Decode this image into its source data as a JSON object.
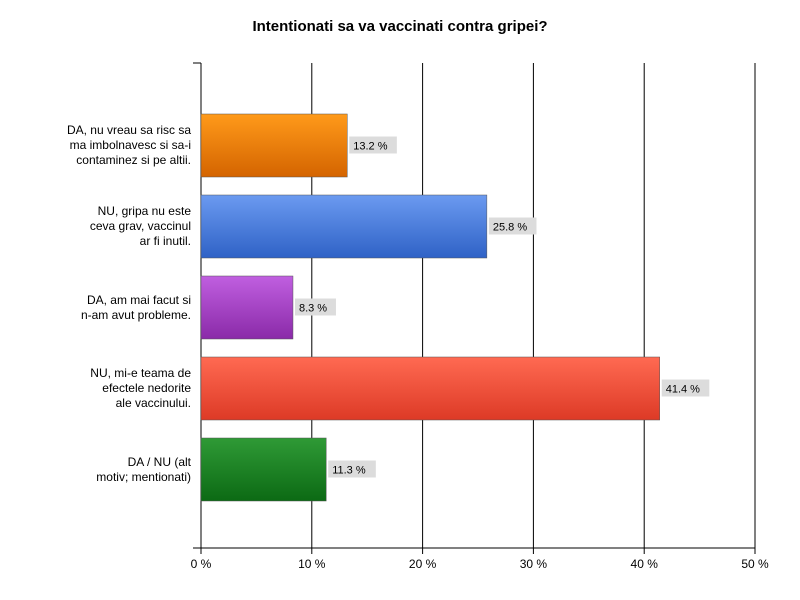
{
  "chart_data": {
    "type": "bar",
    "orientation": "horizontal",
    "title": "Intentionati sa va vaccinati contra gripei?",
    "xlabel": "",
    "ylabel": "",
    "xlim": [
      0,
      50
    ],
    "xticks": [
      0,
      10,
      20,
      30,
      40,
      50
    ],
    "tick_suffix": " %",
    "grid": true,
    "legend": "none",
    "categories": [
      "DA, nu vreau sa risc sa ma imbolnavesc si sa-i contaminez si pe altii.",
      "NU, gripa nu este ceva grav, vaccinul ar fi inutil.",
      "DA, am mai facut si n-am avut probleme.",
      "NU, mi-e teama de efectele nedorite ale vaccinului.",
      "DA / NU (alt motiv; mentionati)"
    ],
    "category_label_lines": [
      [
        "DA, nu vreau sa risc sa",
        "ma imbolnavesc si sa-i",
        "contaminez si pe altii."
      ],
      [
        "NU, gripa nu este",
        "ceva grav, vaccinul",
        "ar fi inutil."
      ],
      [
        "DA, am mai facut si",
        "n-am avut probleme."
      ],
      [
        "NU, mi-e teama de",
        "efectele nedorite",
        "ale vaccinului."
      ],
      [
        "DA / NU (alt",
        "motiv; mentionati)"
      ]
    ],
    "values": [
      13.2,
      25.8,
      8.3,
      41.4,
      11.3
    ],
    "value_labels": [
      "13.2 %",
      "25.8 %",
      "8.3 %",
      "41.4 %",
      "11.3 %"
    ],
    "colors": [
      [
        "#ff9a1a",
        "#d46400"
      ],
      [
        "#6b9af0",
        "#2f62c6"
      ],
      [
        "#c05fe0",
        "#8a2aa8"
      ],
      [
        "#ff6a52",
        "#dd3a26"
      ],
      [
        "#2f9a36",
        "#0c6a14"
      ]
    ]
  }
}
